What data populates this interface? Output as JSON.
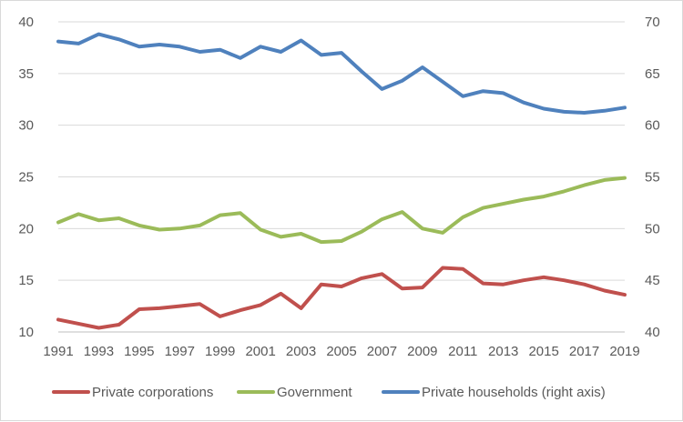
{
  "chart_data": {
    "type": "line",
    "title": "",
    "xlabel": "",
    "ylabel": "",
    "x": [
      1991,
      1992,
      1993,
      1994,
      1995,
      1996,
      1997,
      1998,
      1999,
      2000,
      2001,
      2002,
      2003,
      2004,
      2005,
      2006,
      2007,
      2008,
      2009,
      2010,
      2011,
      2012,
      2013,
      2014,
      2015,
      2016,
      2017,
      2018,
      2019
    ],
    "x_tick_labels": [
      "1991",
      "1993",
      "1995",
      "1997",
      "1999",
      "2001",
      "2003",
      "2005",
      "2007",
      "2009",
      "2011",
      "2013",
      "2015",
      "2017",
      "2019"
    ],
    "ylim_left": [
      10,
      40
    ],
    "y_left_ticks": [
      "10",
      "15",
      "20",
      "25",
      "30",
      "35",
      "40"
    ],
    "ylim_right": [
      40,
      70
    ],
    "y_right_ticks": [
      "40",
      "45",
      "50",
      "55",
      "60",
      "65",
      "70"
    ],
    "grid": "horizontal",
    "legend_position": "bottom",
    "series": [
      {
        "name": "Private corporations",
        "axis": "left",
        "color": "#c0504d",
        "values": [
          11.2,
          10.8,
          10.4,
          10.7,
          12.2,
          12.3,
          12.5,
          12.7,
          11.5,
          12.1,
          12.6,
          13.7,
          12.3,
          14.6,
          14.4,
          15.2,
          15.6,
          14.2,
          14.3,
          16.2,
          16.1,
          14.7,
          14.6,
          15.0,
          15.3,
          15.0,
          14.6,
          14.0,
          13.6
        ]
      },
      {
        "name": "Government",
        "axis": "left",
        "color": "#9bbb59",
        "values": [
          20.6,
          21.4,
          20.8,
          21.0,
          20.3,
          19.9,
          20.0,
          20.3,
          21.3,
          21.5,
          19.9,
          19.2,
          19.5,
          18.7,
          18.8,
          19.7,
          20.9,
          21.6,
          20.0,
          19.6,
          21.1,
          22.0,
          22.4,
          22.8,
          23.1,
          23.6,
          24.2,
          24.7,
          24.9
        ]
      },
      {
        "name": "Private households (right axis)",
        "axis": "right",
        "color": "#4f81bd",
        "values": [
          68.1,
          67.9,
          68.8,
          68.3,
          67.6,
          67.8,
          67.6,
          67.1,
          67.3,
          66.5,
          67.6,
          67.1,
          68.2,
          66.8,
          67.0,
          65.2,
          63.5,
          64.3,
          65.6,
          64.2,
          62.8,
          63.3,
          63.1,
          62.2,
          61.6,
          61.3,
          61.2,
          61.4,
          61.7
        ]
      }
    ]
  }
}
